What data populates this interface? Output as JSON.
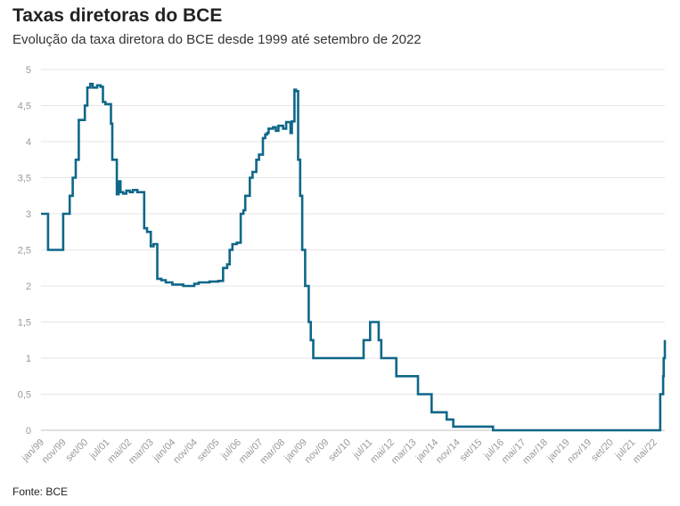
{
  "header": {
    "title": "Taxas diretoras do BCE",
    "subtitle": "Evolução da taxa diretora do BCE desde 1999 até setembro de 2022"
  },
  "footer": {
    "source": "Fonte: BCE"
  },
  "colors": {
    "line": "#0f6788",
    "grid": "#e6e6e6",
    "tick_text": "#999999"
  },
  "chart_data": {
    "type": "line",
    "title": "Taxas diretoras do BCE",
    "subtitle": "Evolução da taxa diretora do BCE desde 1999 até setembro de 2022",
    "xlabel": "",
    "ylabel": "",
    "ylim": [
      0,
      5
    ],
    "xlim": [
      "1999-01-01",
      "2022-09-30"
    ],
    "grid": true,
    "legend": "none",
    "y_ticks": [
      {
        "value": 0,
        "label": "0"
      },
      {
        "value": 0.5,
        "label": "0,5"
      },
      {
        "value": 1,
        "label": "1"
      },
      {
        "value": 1.5,
        "label": "1,5"
      },
      {
        "value": 2,
        "label": "2"
      },
      {
        "value": 2.5,
        "label": "2,5"
      },
      {
        "value": 3,
        "label": "3"
      },
      {
        "value": 3.5,
        "label": "3,5"
      },
      {
        "value": 4,
        "label": "4"
      },
      {
        "value": 4.5,
        "label": "4,5"
      },
      {
        "value": 5,
        "label": "5"
      }
    ],
    "x_ticks": [
      {
        "date": "1999-01-01",
        "label": "jan/99"
      },
      {
        "date": "1999-11-01",
        "label": "nov/99"
      },
      {
        "date": "2000-09-01",
        "label": "set/00"
      },
      {
        "date": "2001-07-01",
        "label": "jul/01"
      },
      {
        "date": "2002-05-01",
        "label": "mai/02"
      },
      {
        "date": "2003-03-01",
        "label": "mar/03"
      },
      {
        "date": "2004-01-01",
        "label": "jan/04"
      },
      {
        "date": "2004-11-01",
        "label": "nov/04"
      },
      {
        "date": "2005-09-01",
        "label": "set/05"
      },
      {
        "date": "2006-07-01",
        "label": "jul/06"
      },
      {
        "date": "2007-05-01",
        "label": "mai/07"
      },
      {
        "date": "2008-03-01",
        "label": "mar/08"
      },
      {
        "date": "2009-01-01",
        "label": "jan/09"
      },
      {
        "date": "2009-11-01",
        "label": "nov/09"
      },
      {
        "date": "2010-09-01",
        "label": "set/10"
      },
      {
        "date": "2011-07-01",
        "label": "jul/11"
      },
      {
        "date": "2012-05-01",
        "label": "mai/12"
      },
      {
        "date": "2013-03-01",
        "label": "mar/13"
      },
      {
        "date": "2014-01-01",
        "label": "jan/14"
      },
      {
        "date": "2014-11-01",
        "label": "nov/14"
      },
      {
        "date": "2015-09-01",
        "label": "set/15"
      },
      {
        "date": "2016-07-01",
        "label": "jul/16"
      },
      {
        "date": "2017-05-01",
        "label": "mai/17"
      },
      {
        "date": "2018-03-01",
        "label": "mar/18"
      },
      {
        "date": "2019-01-01",
        "label": "jan/19"
      },
      {
        "date": "2019-11-01",
        "label": "nov/19"
      },
      {
        "date": "2020-09-01",
        "label": "set/20"
      },
      {
        "date": "2021-07-01",
        "label": "jul/21"
      },
      {
        "date": "2022-05-01",
        "label": "mai/22"
      }
    ],
    "series": [
      {
        "step": true,
        "points": [
          [
            "1999-01-01",
            3.0
          ],
          [
            "1999-04-09",
            2.5
          ],
          [
            "1999-11-05",
            3.0
          ],
          [
            "2000-02-04",
            3.25
          ],
          [
            "2000-03-17",
            3.5
          ],
          [
            "2000-04-28",
            3.75
          ],
          [
            "2000-06-09",
            4.3
          ],
          [
            "2000-09-01",
            4.5
          ],
          [
            "2000-10-06",
            4.75
          ],
          [
            "2000-11-15",
            4.8
          ],
          [
            "2000-12-20",
            4.75
          ],
          [
            "2001-02-20",
            4.78
          ],
          [
            "2001-04-10",
            4.76
          ],
          [
            "2001-05-11",
            4.55
          ],
          [
            "2001-06-15",
            4.52
          ],
          [
            "2001-08-31",
            4.25
          ],
          [
            "2001-09-18",
            3.75
          ],
          [
            "2001-11-09",
            3.75
          ],
          [
            "2001-11-20",
            3.27
          ],
          [
            "2001-12-15",
            3.45
          ],
          [
            "2002-01-10",
            3.3
          ],
          [
            "2002-02-15",
            3.28
          ],
          [
            "2002-04-01",
            3.32
          ],
          [
            "2002-05-20",
            3.3
          ],
          [
            "2002-07-01",
            3.33
          ],
          [
            "2002-09-01",
            3.3
          ],
          [
            "2002-12-06",
            2.8
          ],
          [
            "2003-01-15",
            2.75
          ],
          [
            "2003-03-07",
            2.55
          ],
          [
            "2003-04-15",
            2.58
          ],
          [
            "2003-06-06",
            2.1
          ],
          [
            "2003-08-01",
            2.08
          ],
          [
            "2003-10-01",
            2.05
          ],
          [
            "2004-01-01",
            2.02
          ],
          [
            "2004-06-01",
            2.0
          ],
          [
            "2004-11-01",
            2.03
          ],
          [
            "2005-01-01",
            2.05
          ],
          [
            "2005-06-01",
            2.06
          ],
          [
            "2005-10-01",
            2.07
          ],
          [
            "2005-12-06",
            2.25
          ],
          [
            "2006-02-01",
            2.3
          ],
          [
            "2006-03-08",
            2.5
          ],
          [
            "2006-04-15",
            2.58
          ],
          [
            "2006-06-15",
            2.6
          ],
          [
            "2006-08-09",
            3.0
          ],
          [
            "2006-09-15",
            3.05
          ],
          [
            "2006-10-11",
            3.25
          ],
          [
            "2006-12-13",
            3.5
          ],
          [
            "2007-01-20",
            3.58
          ],
          [
            "2007-03-14",
            3.75
          ],
          [
            "2007-04-20",
            3.82
          ],
          [
            "2007-06-13",
            4.05
          ],
          [
            "2007-07-15",
            4.1
          ],
          [
            "2007-08-10",
            4.12
          ],
          [
            "2007-09-01",
            4.18
          ],
          [
            "2007-11-01",
            4.2
          ],
          [
            "2007-12-10",
            4.15
          ],
          [
            "2008-01-15",
            4.22
          ],
          [
            "2008-03-20",
            4.18
          ],
          [
            "2008-05-01",
            4.27
          ],
          [
            "2008-07-01",
            4.12
          ],
          [
            "2008-07-20",
            4.28
          ],
          [
            "2008-08-25",
            4.72
          ],
          [
            "2008-09-15",
            4.7
          ],
          [
            "2008-10-15",
            3.75
          ],
          [
            "2008-11-12",
            3.25
          ],
          [
            "2008-12-10",
            2.5
          ],
          [
            "2009-01-21",
            2.0
          ],
          [
            "2009-03-11",
            1.5
          ],
          [
            "2009-04-08",
            1.25
          ],
          [
            "2009-05-13",
            1.0
          ],
          [
            "2011-04-13",
            1.25
          ],
          [
            "2011-07-13",
            1.5
          ],
          [
            "2011-11-09",
            1.25
          ],
          [
            "2011-12-14",
            1.0
          ],
          [
            "2012-07-11",
            0.75
          ],
          [
            "2013-05-08",
            0.5
          ],
          [
            "2013-11-13",
            0.25
          ],
          [
            "2014-06-11",
            0.15
          ],
          [
            "2014-09-10",
            0.05
          ],
          [
            "2016-03-16",
            0.0
          ],
          [
            "2022-07-27",
            0.5
          ],
          [
            "2022-09-07",
            0.75
          ],
          [
            "2022-09-14",
            1.0
          ],
          [
            "2022-09-30",
            1.25
          ]
        ]
      }
    ]
  }
}
